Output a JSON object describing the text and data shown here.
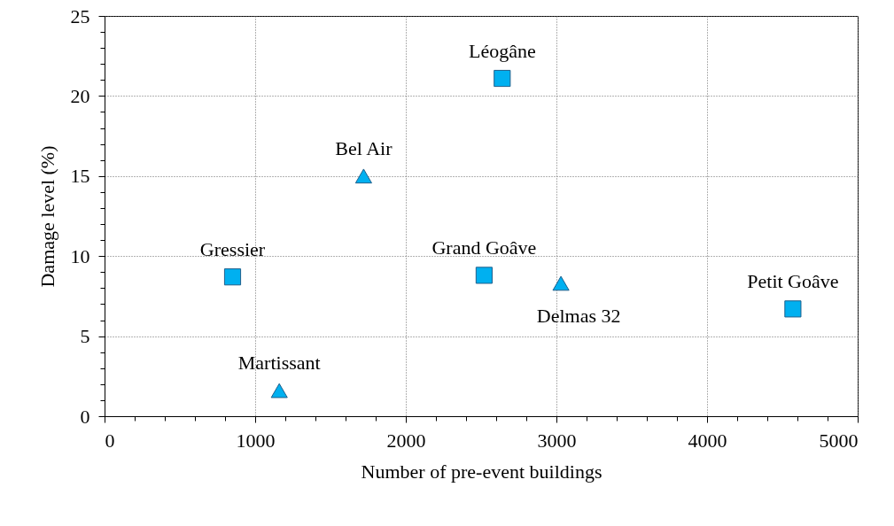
{
  "chart_data": {
    "type": "scatter",
    "xlabel": "Number of pre-event buildings",
    "ylabel": "Damage level (%)",
    "xlim": [
      0,
      5000
    ],
    "ylim": [
      0,
      25
    ],
    "xticks": [
      0,
      {
        "value": 200,
        "label": null
      },
      {
        "value": 400,
        "label": null
      },
      {
        "value": 600,
        "label": null
      },
      {
        "value": 800,
        "label": null
      },
      1000,
      {
        "value": 1200,
        "label": null
      },
      {
        "value": 1400,
        "label": null
      },
      {
        "value": 1600,
        "label": null
      },
      {
        "value": 1800,
        "label": null
      },
      2000,
      {
        "value": 2200,
        "label": null
      },
      {
        "value": 2400,
        "label": null
      },
      {
        "value": 2600,
        "label": null
      },
      {
        "value": 2800,
        "label": null
      },
      3000,
      {
        "value": 3200,
        "label": null
      },
      {
        "value": 3400,
        "label": null
      },
      {
        "value": 3600,
        "label": null
      },
      {
        "value": 3800,
        "label": null
      },
      4000,
      {
        "value": 4200,
        "label": null
      },
      {
        "value": 4400,
        "label": null
      },
      {
        "value": 4600,
        "label": null
      },
      {
        "value": 4800,
        "label": null
      },
      5000
    ],
    "yticks": [
      0,
      {
        "value": 1,
        "label": null
      },
      {
        "value": 2,
        "label": null
      },
      {
        "value": 3,
        "label": null
      },
      {
        "value": 4,
        "label": null
      },
      5,
      {
        "value": 6,
        "label": null
      },
      {
        "value": 7,
        "label": null
      },
      {
        "value": 8,
        "label": null
      },
      {
        "value": 9,
        "label": null
      },
      10,
      {
        "value": 11,
        "label": null
      },
      {
        "value": 12,
        "label": null
      },
      {
        "value": 13,
        "label": null
      },
      {
        "value": 14,
        "label": null
      },
      15,
      {
        "value": 16,
        "label": null
      },
      {
        "value": 17,
        "label": null
      },
      {
        "value": 18,
        "label": null
      },
      {
        "value": 19,
        "label": null
      },
      20,
      {
        "value": 21,
        "label": null
      },
      {
        "value": 22,
        "label": null
      },
      {
        "value": 23,
        "label": null
      },
      {
        "value": 24,
        "label": null
      },
      25
    ],
    "grid": true,
    "series": [
      {
        "color": "#00b0f0",
        "marker": "square",
        "x": [
          2640,
          850,
          2520,
          4570
        ],
        "values": [
          21.1,
          8.7,
          8.8,
          6.7
        ]
      },
      {
        "color": "#00b0f0",
        "marker": "triangle",
        "x": [
          1720,
          3030,
          1160
        ],
        "values": [
          15.0,
          8.3,
          1.6
        ]
      }
    ],
    "annotations": [
      {
        "text": "Léogâne",
        "x": 2640,
        "y": 21.1
      },
      {
        "text": "Bel Air",
        "x": 1720,
        "y": 15.0
      },
      {
        "text": "Gressier",
        "x": 850,
        "y": 8.7
      },
      {
        "text": "Grand Goâve",
        "x": 2520,
        "y": 8.8
      },
      {
        "text": "Delmas 32",
        "x": 3030,
        "y": 8.3
      },
      {
        "text": "Petit Goâve",
        "x": 4570,
        "y": 6.7
      },
      {
        "text": "Martissant",
        "x": 1160,
        "y": 1.6
      }
    ]
  }
}
